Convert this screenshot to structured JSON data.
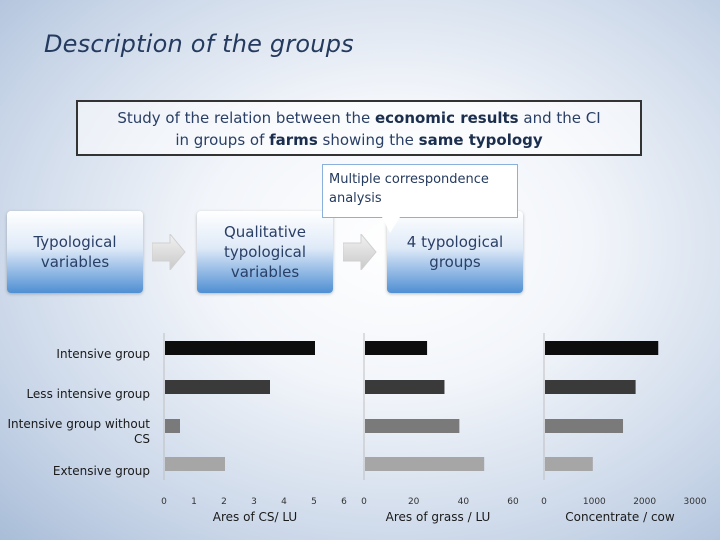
{
  "title": "Description of the groups",
  "study": {
    "line1_pre": "Study of the relation between the ",
    "line1_bold": "economic results",
    "line1_post": " and the CI",
    "line2_pre": "in groups of ",
    "line2_bold1": "farms",
    "line2_mid": " showing the ",
    "line2_bold2": "same typology"
  },
  "callout": "Multiple correspondence analysis",
  "flow": {
    "box1": "Typological variables",
    "box2": "Qualitative typological variables",
    "box3": "4 typological groups"
  },
  "groups": [
    "Intensive group",
    "Less intensive group",
    "Intensive group without CS",
    "Extensive group"
  ],
  "colors": {
    "bars": [
      "#0d0d0d",
      "#3a3a3a",
      "#7a7a7a",
      "#a6a6a6"
    ],
    "accent": "#4f8fd3"
  },
  "chart_data": [
    {
      "type": "bar",
      "orientation": "horizontal",
      "categories": [
        "Intensive group",
        "Less intensive group",
        "Intensive group without CS",
        "Extensive group"
      ],
      "values": [
        5.0,
        3.5,
        0.5,
        2.0
      ],
      "xlim": [
        0,
        6
      ],
      "ticks": [
        "0",
        "1",
        "2",
        "3",
        "4",
        "5",
        "6"
      ],
      "xlabel": "Ares of CS/ LU"
    },
    {
      "type": "bar",
      "orientation": "horizontal",
      "categories": [
        "Intensive group",
        "Less intensive group",
        "Intensive group without CS",
        "Extensive group"
      ],
      "values": [
        25,
        32,
        38,
        48
      ],
      "xlim": [
        0,
        60
      ],
      "ticks": [
        "0",
        "20",
        "40",
        "60"
      ],
      "xlabel": "Ares of grass / LU"
    },
    {
      "type": "bar",
      "orientation": "horizontal",
      "categories": [
        "Intensive group",
        "Less intensive group",
        "Intensive group without CS",
        "Extensive group"
      ],
      "values": [
        2250,
        1800,
        1550,
        950
      ],
      "xlim": [
        0,
        3000
      ],
      "ticks": [
        "0",
        "1000",
        "2000",
        "3000"
      ],
      "xlabel": "Concentrate / cow"
    }
  ]
}
